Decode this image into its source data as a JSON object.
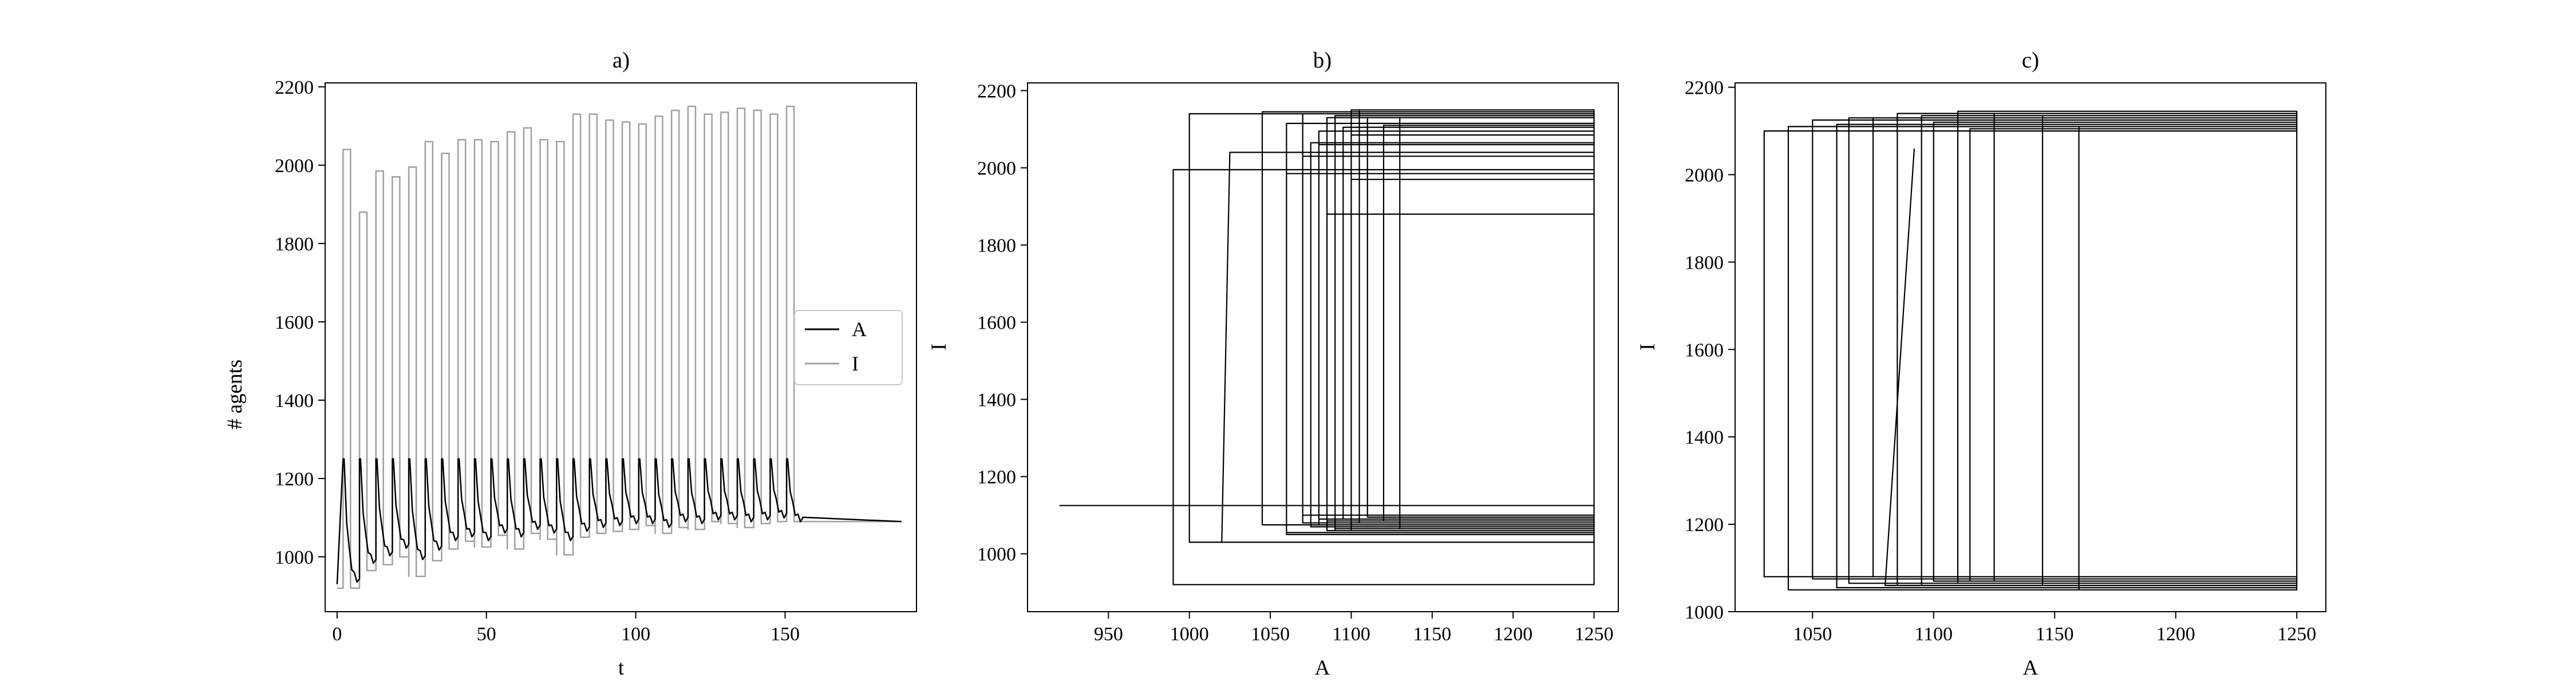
{
  "chart_data": [
    {
      "type": "line",
      "title": "a)",
      "xlabel": "t",
      "ylabel": "# agents",
      "xlim": [
        -4,
        194
      ],
      "ylim": [
        860,
        2210
      ],
      "xticks": [
        0,
        50,
        100,
        150
      ],
      "yticks": [
        1000,
        1200,
        1400,
        1600,
        1800,
        2000,
        2200
      ],
      "legend_position": "center-right",
      "colors": {
        "A": "#000000",
        "I": "#a0a0a0"
      },
      "period": 5.5,
      "phase": 2,
      "I_peaks": [
        2040,
        1880,
        1985,
        1970,
        1995,
        2060,
        2030,
        2065,
        2065,
        2060,
        2085,
        2095,
        2065,
        2060,
        2130,
        2130,
        2115,
        2110,
        2105,
        2125,
        2140,
        2150,
        2130,
        2135,
        2145,
        2140,
        2130,
        2150
      ],
      "I_troughs": [
        920,
        965,
        980,
        1000,
        950,
        990,
        1020,
        1040,
        1025,
        1055,
        1020,
        1060,
        1045,
        1005,
        1050,
        1060,
        1065,
        1070,
        1080,
        1060,
        1075,
        1070,
        1090,
        1085,
        1075,
        1085,
        1090,
        1090
      ],
      "A_peak": 1250,
      "A_troughs": [
        930,
        980,
        1000,
        1020,
        990,
        1015,
        1040,
        1050,
        1040,
        1060,
        1050,
        1070,
        1060,
        1040,
        1065,
        1075,
        1080,
        1085,
        1085,
        1075,
        1090,
        1085,
        1095,
        1095,
        1090,
        1095,
        1100,
        1090
      ],
      "series": [
        {
          "name": "A"
        },
        {
          "name": "I"
        }
      ]
    },
    {
      "type": "line",
      "title": "b)",
      "xlabel": "A",
      "ylabel": "I",
      "xlim": [
        900,
        1265
      ],
      "ylim": [
        850,
        2220
      ],
      "xticks": [
        950,
        1000,
        1050,
        1100,
        1150,
        1200,
        1250
      ],
      "yticks": [
        1000,
        1200,
        1400,
        1600,
        1800,
        2000,
        2200
      ],
      "series": [
        {
          "x": [
            1250,
            1250,
            1085,
            1085,
            1250,
            1250,
            1025,
            1020,
            1250,
            1250,
            1060,
            1060,
            1250,
            1250,
            1100,
            1100,
            1250,
            1250,
            990,
            990,
            1250,
            1250,
            1090,
            1090,
            1250,
            1250,
            1070,
            1070,
            1250,
            1250,
            1075,
            1075,
            1250,
            1250,
            1130,
            1130,
            1250,
            1250,
            1080,
            1080,
            1250,
            1250,
            1100,
            1100,
            1250,
            1250,
            1080,
            1080,
            1250,
            1250,
            1110,
            1110,
            1250,
            1250,
            1060,
            1060,
            1250,
            1250,
            1120,
            1120,
            1250,
            1250,
            1095,
            1095,
            1250,
            1250,
            920,
            955,
            1250,
            1250,
            1085,
            1085,
            1250,
            1250,
            1000,
            1000,
            1250,
            1250,
            1105,
            1105,
            1250,
            1250,
            1090,
            1090,
            1250,
            1250,
            1045,
            1045,
            1250,
            1250,
            1070,
            1070,
            1250,
            1250,
            1130,
            1130,
            1250,
            1250,
            1100,
            1100,
            1250
          ],
          "y": [
            1880,
            1880,
            1880,
            1060,
            1060,
            2040,
            2040,
            1030,
            1030,
            1985,
            1985,
            1050,
            1050,
            1970,
            1970,
            1070,
            1070,
            1995,
            1995,
            920,
            920,
            2060,
            2060,
            1060,
            1060,
            2030,
            2030,
            1080,
            1080,
            2065,
            2065,
            1070,
            1070,
            2065,
            2065,
            1065,
            1065,
            2060,
            2060,
            1090,
            1090,
            2085,
            2085,
            1080,
            1080,
            2095,
            2095,
            1075,
            1075,
            2130,
            2130,
            1095,
            1095,
            2115,
            2115,
            1055,
            1055,
            2110,
            2110,
            1085,
            1085,
            2105,
            2105,
            1090,
            1090,
            1125,
            1125,
            1125,
            1125,
            2130,
            2130,
            1085,
            1085,
            2140,
            2140,
            1030,
            1030,
            2150,
            2150,
            1080,
            1080,
            2135,
            2135,
            1065,
            1065,
            2145,
            2145,
            1075,
            1075,
            2140,
            2140,
            1100,
            1100,
            2130,
            2130,
            1070,
            1070,
            2150,
            2150,
            1060,
            1060
          ]
        }
      ]
    },
    {
      "type": "line",
      "title": "c)",
      "xlabel": "A",
      "ylabel": "I",
      "xlim": [
        1018,
        1262
      ],
      "ylim": [
        1000,
        2210
      ],
      "xticks": [
        1050,
        1100,
        1150,
        1200,
        1250
      ],
      "yticks": [
        1000,
        1200,
        1400,
        1600,
        1800,
        2000,
        2200
      ],
      "series": [
        {
          "x": [
            1092,
            1080,
            1250,
            1250,
            1030,
            1030,
            1250,
            1250,
            1100,
            1100,
            1250,
            1250,
            1065,
            1065,
            1250,
            1250,
            1040,
            1040,
            1250,
            1250,
            1125,
            1125,
            1250,
            1250,
            1145,
            1145,
            1250,
            1250,
            1060,
            1060,
            1250,
            1250,
            1110,
            1110,
            1250,
            1250,
            1050,
            1050,
            1250,
            1250,
            1085,
            1085,
            1250,
            1250,
            1115,
            1115,
            1250,
            1250,
            1075,
            1075,
            1250,
            1250,
            1160,
            1160,
            1250,
            1250,
            1095,
            1095,
            1250
          ],
          "y": [
            2060,
            1060,
            1060,
            2100,
            2100,
            1080,
            1080,
            2120,
            2120,
            1070,
            1070,
            2130,
            2130,
            1065,
            1065,
            2110,
            2110,
            1050,
            1050,
            2140,
            2140,
            1070,
            1070,
            2135,
            2135,
            1060,
            1060,
            2115,
            2115,
            1055,
            1055,
            2145,
            2145,
            1065,
            1065,
            2125,
            2125,
            1075,
            1075,
            2140,
            2140,
            1060,
            1060,
            2105,
            2105,
            1070,
            1070,
            2130,
            2130,
            1080,
            1080,
            2110,
            2110,
            1050,
            1050,
            2135,
            2135,
            1060,
            1060
          ]
        }
      ]
    }
  ]
}
